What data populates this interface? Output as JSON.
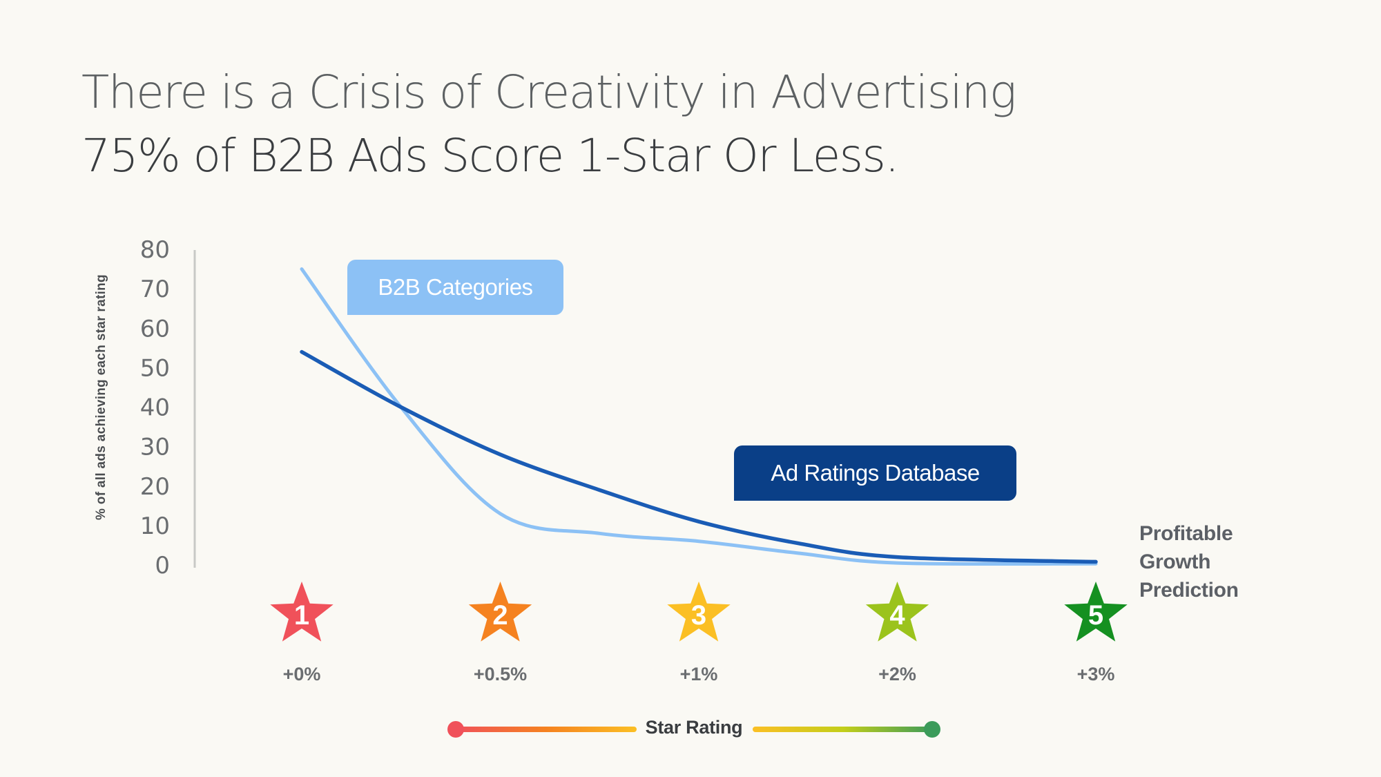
{
  "title": {
    "line1": "There is a Crisis of Creativity in Advertising",
    "line2": "75% of B2B Ads Score 1-Star Or Less."
  },
  "chart_data": {
    "type": "line",
    "ylabel": "% of all ads  achieving each star rating",
    "xlabel": "Star Rating",
    "ylim": [
      0,
      80
    ],
    "yticks": [
      0,
      10,
      20,
      30,
      40,
      50,
      60,
      70,
      80
    ],
    "x": [
      1,
      2,
      3,
      4,
      5
    ],
    "star_ratings": [
      "1",
      "2",
      "3",
      "4",
      "5"
    ],
    "growth_labels": [
      "+0%",
      "+0.5%",
      "+1%",
      "+2%",
      "+3%"
    ],
    "growth_caption": [
      "Profitable",
      "Growth",
      "Prediction"
    ],
    "series": [
      {
        "name": "B2B Categories",
        "color": "#8cc1f5",
        "points": [
          [
            1,
            75
          ],
          [
            1.5,
            40
          ],
          [
            2,
            13
          ],
          [
            2.5,
            8
          ],
          [
            3,
            6
          ],
          [
            3.5,
            3
          ],
          [
            4,
            0.5
          ],
          [
            5,
            0.3
          ]
        ]
      },
      {
        "name": "Ad Ratings Database",
        "color": "#1a5cb5",
        "points": [
          [
            1,
            54
          ],
          [
            1.5,
            40
          ],
          [
            2,
            28
          ],
          [
            2.5,
            19
          ],
          [
            3,
            11
          ],
          [
            3.5,
            5.5
          ],
          [
            4,
            2
          ],
          [
            5,
            0.8
          ]
        ]
      }
    ],
    "star_colors": [
      "#f0515a",
      "#f58220",
      "#fbbf24",
      "#9bc31c",
      "#159021"
    ],
    "legend_gradient": [
      "#f0515a",
      "#f58220",
      "#fbbf24",
      "#c3ce1a",
      "#3b9b5a"
    ],
    "grid": false
  }
}
